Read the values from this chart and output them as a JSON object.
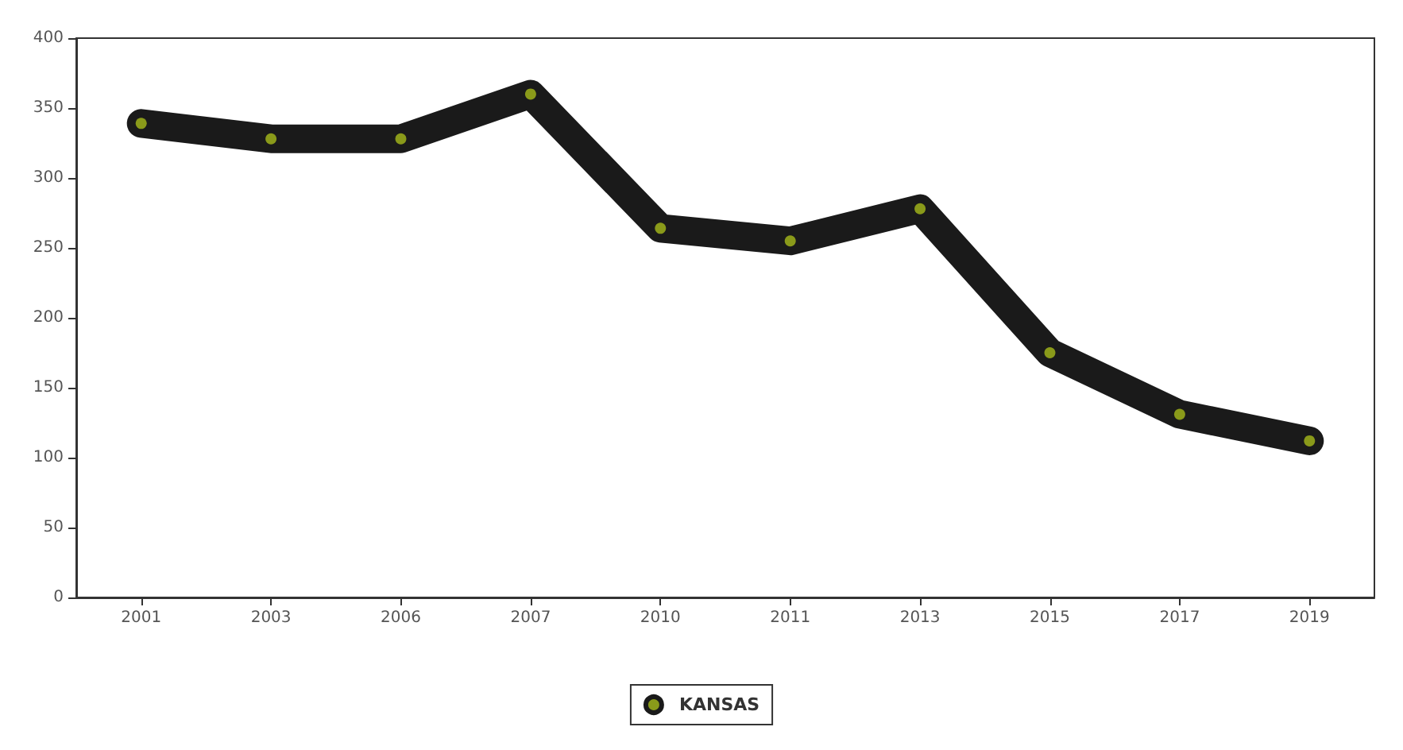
{
  "chart_data": {
    "type": "line",
    "categories": [
      "2001",
      "2003",
      "2006",
      "2007",
      "2010",
      "2011",
      "2013",
      "2015",
      "2017",
      "2019"
    ],
    "series": [
      {
        "name": "KANSAS",
        "color": "#1a1a1a",
        "values": [
          339,
          328,
          328,
          360,
          264,
          255,
          278,
          175,
          131,
          112
        ]
      }
    ],
    "ylim": [
      0,
      400
    ],
    "yticks": [
      0,
      50,
      100,
      150,
      200,
      250,
      300,
      350,
      400
    ],
    "grid": false,
    "legend": "bottom",
    "marker": "circle",
    "line_style": "solid"
  }
}
